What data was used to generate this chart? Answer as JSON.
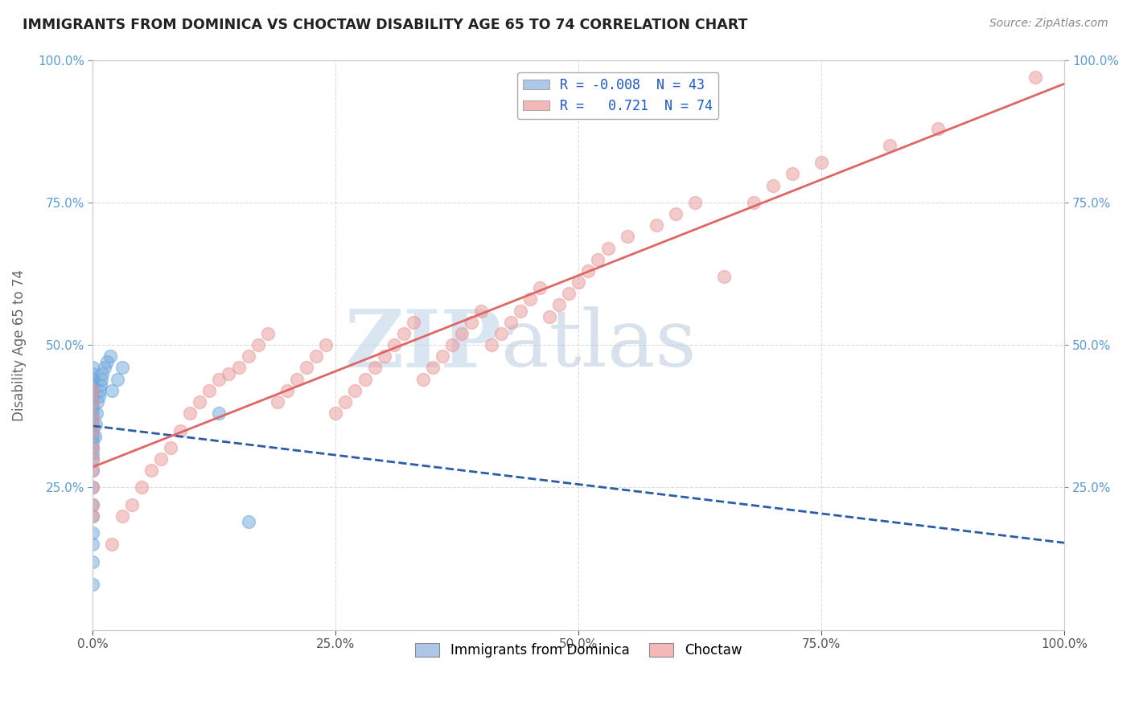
{
  "title": "IMMIGRANTS FROM DOMINICA VS CHOCTAW DISABILITY AGE 65 TO 74 CORRELATION CHART",
  "source": "Source: ZipAtlas.com",
  "ylabel": "Disability Age 65 to 74",
  "xlim": [
    0,
    1.0
  ],
  "ylim": [
    0,
    1.0
  ],
  "xtick_labels": [
    "0.0%",
    "25.0%",
    "50.0%",
    "75.0%",
    "100.0%"
  ],
  "xtick_values": [
    0,
    0.25,
    0.5,
    0.75,
    1.0
  ],
  "ytick_labels": [
    "25.0%",
    "50.0%",
    "75.0%",
    "100.0%"
  ],
  "ytick_values": [
    0.25,
    0.5,
    0.75,
    1.0
  ],
  "blue_R": -0.008,
  "blue_N": 43,
  "pink_R": 0.721,
  "pink_N": 74,
  "blue_color": "#6fa8dc",
  "pink_color": "#ea9999",
  "blue_line_color": "#2a5caa",
  "pink_line_color": "#e06666",
  "watermark_zip": "ZIP",
  "watermark_atlas": "atlas",
  "watermark_color_zip": "#c8d8e8",
  "watermark_color_atlas": "#b0c8e0",
  "background_color": "#ffffff",
  "blue_scatter_x": [
    0.0,
    0.0,
    0.0,
    0.0,
    0.0,
    0.0,
    0.0,
    0.0,
    0.0,
    0.0,
    0.0,
    0.0,
    0.0,
    0.0,
    0.0,
    0.0,
    0.0,
    0.0,
    0.0,
    0.0,
    0.0,
    0.0,
    0.0,
    0.0,
    0.0,
    0.0,
    0.002,
    0.003,
    0.004,
    0.005,
    0.006,
    0.007,
    0.008,
    0.009,
    0.01,
    0.012,
    0.015,
    0.018,
    0.02,
    0.025,
    0.03,
    0.13,
    0.16
  ],
  "blue_scatter_y": [
    0.08,
    0.12,
    0.15,
    0.17,
    0.2,
    0.22,
    0.25,
    0.28,
    0.3,
    0.31,
    0.32,
    0.33,
    0.34,
    0.35,
    0.36,
    0.37,
    0.38,
    0.39,
    0.4,
    0.41,
    0.42,
    0.43,
    0.44,
    0.44,
    0.45,
    0.46,
    0.34,
    0.36,
    0.38,
    0.4,
    0.41,
    0.42,
    0.43,
    0.44,
    0.45,
    0.46,
    0.47,
    0.48,
    0.42,
    0.44,
    0.46,
    0.38,
    0.19
  ],
  "pink_scatter_x": [
    0.0,
    0.0,
    0.0,
    0.0,
    0.0,
    0.0,
    0.0,
    0.0,
    0.0,
    0.0,
    0.02,
    0.03,
    0.04,
    0.05,
    0.06,
    0.07,
    0.08,
    0.09,
    0.1,
    0.11,
    0.12,
    0.13,
    0.14,
    0.15,
    0.16,
    0.17,
    0.18,
    0.19,
    0.2,
    0.21,
    0.22,
    0.23,
    0.24,
    0.25,
    0.26,
    0.27,
    0.28,
    0.29,
    0.3,
    0.31,
    0.32,
    0.33,
    0.34,
    0.35,
    0.36,
    0.37,
    0.38,
    0.39,
    0.4,
    0.41,
    0.42,
    0.43,
    0.44,
    0.45,
    0.46,
    0.47,
    0.48,
    0.49,
    0.5,
    0.51,
    0.52,
    0.53,
    0.55,
    0.58,
    0.6,
    0.62,
    0.65,
    0.68,
    0.7,
    0.72,
    0.75,
    0.82,
    0.87,
    0.97
  ],
  "pink_scatter_y": [
    0.2,
    0.22,
    0.25,
    0.28,
    0.3,
    0.32,
    0.35,
    0.37,
    0.4,
    0.42,
    0.15,
    0.2,
    0.22,
    0.25,
    0.28,
    0.3,
    0.32,
    0.35,
    0.38,
    0.4,
    0.42,
    0.44,
    0.45,
    0.46,
    0.48,
    0.5,
    0.52,
    0.4,
    0.42,
    0.44,
    0.46,
    0.48,
    0.5,
    0.38,
    0.4,
    0.42,
    0.44,
    0.46,
    0.48,
    0.5,
    0.52,
    0.54,
    0.44,
    0.46,
    0.48,
    0.5,
    0.52,
    0.54,
    0.56,
    0.5,
    0.52,
    0.54,
    0.56,
    0.58,
    0.6,
    0.55,
    0.57,
    0.59,
    0.61,
    0.63,
    0.65,
    0.67,
    0.69,
    0.71,
    0.73,
    0.75,
    0.62,
    0.75,
    0.78,
    0.8,
    0.82,
    0.85,
    0.88,
    0.97
  ],
  "legend_label_blue": "R = -0.008  N = 43",
  "legend_label_pink": "R =   0.721  N = 74",
  "bottom_legend_blue": "Immigrants from Dominica",
  "bottom_legend_pink": "Choctaw"
}
